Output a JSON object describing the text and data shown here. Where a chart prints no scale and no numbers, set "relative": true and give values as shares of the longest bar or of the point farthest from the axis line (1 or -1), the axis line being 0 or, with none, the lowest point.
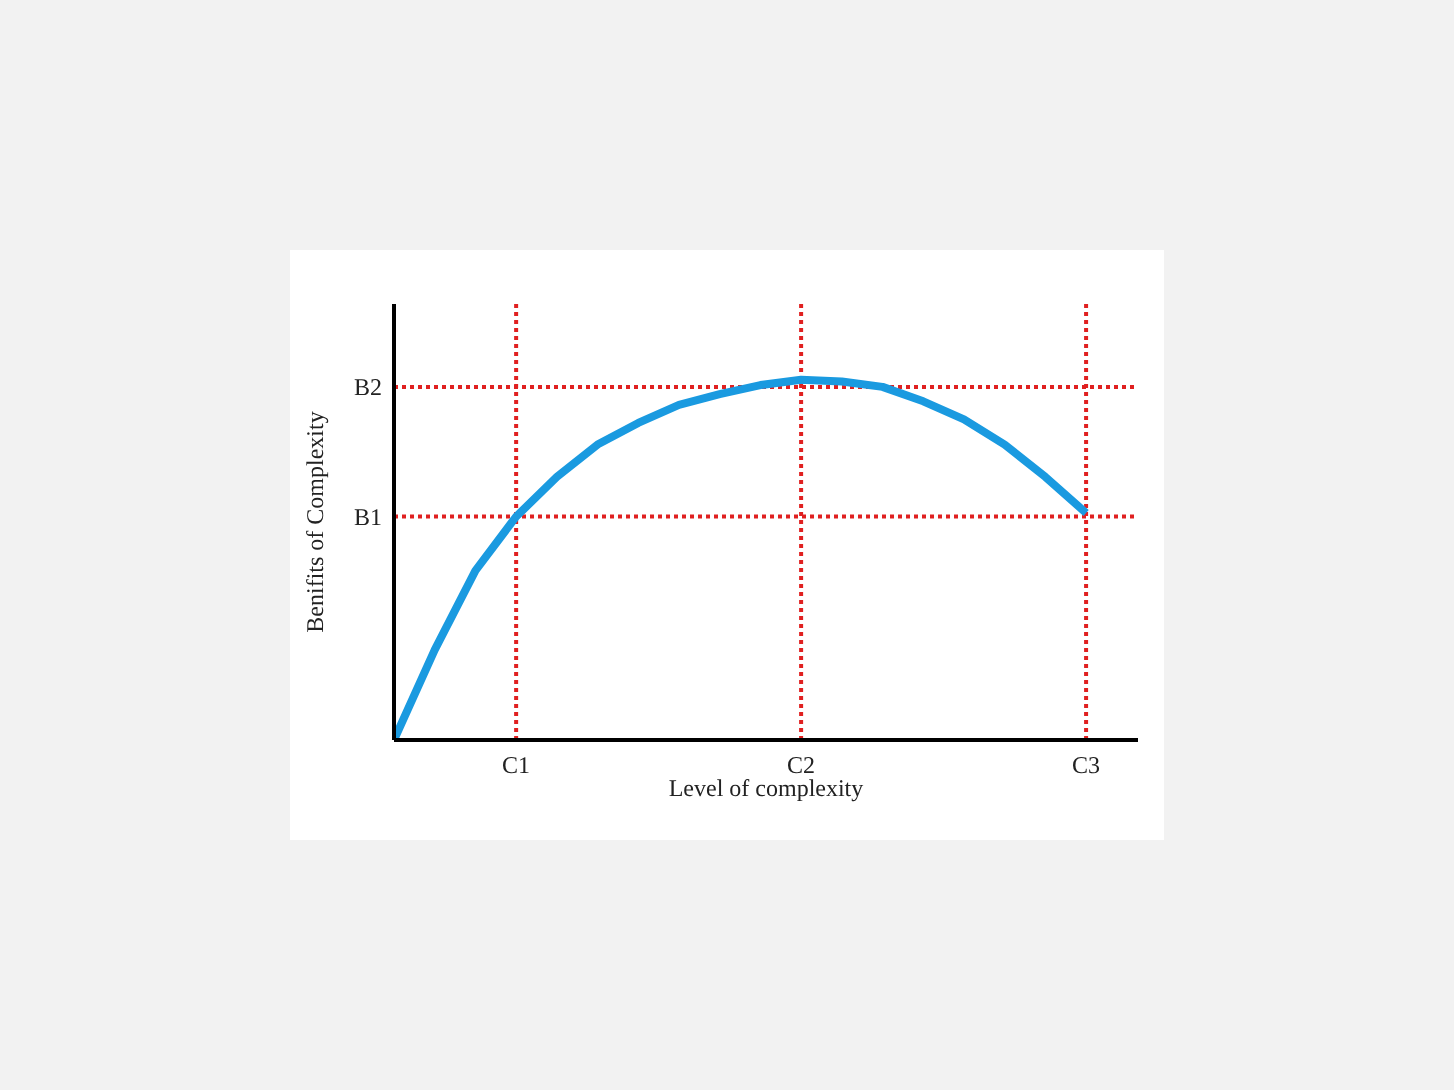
{
  "chart_data": {
    "type": "line",
    "xlabel": "Level of complexity",
    "ylabel": "Benifits of Complexity",
    "relative": true,
    "categories": [
      null,
      null,
      null,
      "C1",
      null,
      null,
      null,
      null,
      null,
      null,
      "C2",
      null,
      null,
      null,
      null,
      null,
      null,
      "C3"
    ],
    "series": [
      {
        "color": "#1a9ae0",
        "values": [
          0,
          0.25,
          0.47,
          0.62,
          0.73,
          0.82,
          0.88,
          0.93,
          0.96,
          0.985,
          1,
          0.995,
          0.98,
          0.94,
          0.89,
          0.82,
          0.73,
          0.63
        ]
      }
    ],
    "marker": "none",
    "line_style": "solid",
    "grid": false,
    "legend": false,
    "ref_lines": [
      {
        "axis": "y",
        "value": 0.62,
        "label": "B1",
        "color": "#e02020",
        "line_style": "dotted"
      },
      {
        "axis": "y",
        "value": 0.98,
        "label": "B2",
        "color": "#e02020",
        "line_style": "dotted"
      },
      {
        "axis": "x",
        "value": "C1",
        "color": "#e02020",
        "line_style": "dotted"
      },
      {
        "axis": "x",
        "value": "C2",
        "color": "#e02020",
        "line_style": "dotted"
      },
      {
        "axis": "x",
        "value": "C3",
        "color": "#e02020",
        "line_style": "dotted"
      }
    ]
  }
}
